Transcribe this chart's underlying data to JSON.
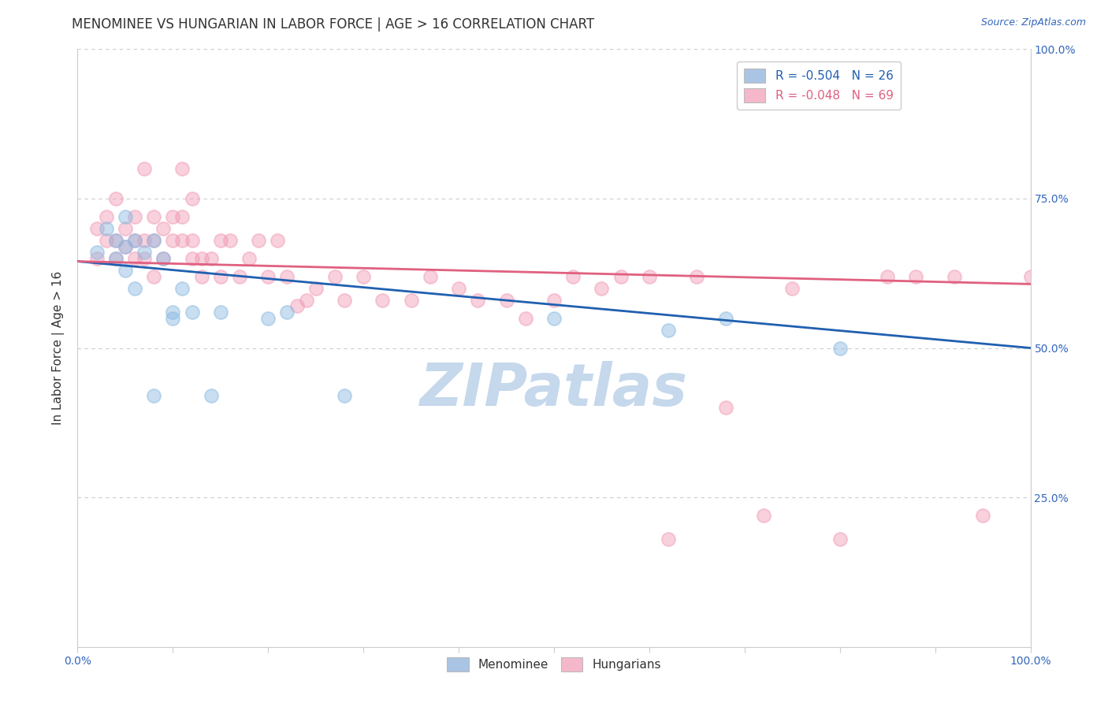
{
  "title": "MENOMINEE VS HUNGARIAN IN LABOR FORCE | AGE > 16 CORRELATION CHART",
  "source_text": "Source: ZipAtlas.com",
  "ylabel": "In Labor Force | Age > 16",
  "xlim": [
    0.0,
    1.0
  ],
  "ylim": [
    0.0,
    1.0
  ],
  "ytick_pos": [
    0.0,
    0.25,
    0.5,
    0.75,
    1.0
  ],
  "xtick_pos": [
    0.0,
    0.1,
    0.2,
    0.3,
    0.4,
    0.5,
    0.6,
    0.7,
    0.8,
    0.9,
    1.0
  ],
  "right_ytick_labels": [
    "",
    "25.0%",
    "50.0%",
    "75.0%",
    "100.0%"
  ],
  "xtick_labels": [
    "0.0%",
    "",
    "",
    "",
    "",
    "",
    "",
    "",
    "",
    "",
    "100.0%"
  ],
  "legend_blue_label": "R = -0.504   N = 26",
  "legend_pink_label": "R = -0.048   N = 69",
  "legend_blue_color": "#aac4e4",
  "legend_pink_color": "#f5b8ca",
  "scatter_blue_color": "#88b8e0",
  "scatter_pink_color": "#f09ab5",
  "line_blue_color": "#2060b0",
  "line_pink_color": "#e06080",
  "watermark_color": "#c5d8ec",
  "background_color": "#ffffff",
  "grid_color": "#cccccc",
  "title_color": "#333333",
  "tick_color": "#3366bb",
  "axis_label_color": "#333333",
  "menominee_x": [
    0.02,
    0.03,
    0.04,
    0.04,
    0.05,
    0.05,
    0.05,
    0.06,
    0.06,
    0.07,
    0.08,
    0.08,
    0.09,
    0.1,
    0.1,
    0.11,
    0.12,
    0.14,
    0.15,
    0.2,
    0.22,
    0.28,
    0.5,
    0.62,
    0.68,
    0.8
  ],
  "menominee_y": [
    0.66,
    0.7,
    0.68,
    0.65,
    0.72,
    0.67,
    0.63,
    0.68,
    0.6,
    0.66,
    0.68,
    0.42,
    0.65,
    0.56,
    0.55,
    0.6,
    0.56,
    0.42,
    0.56,
    0.55,
    0.56,
    0.42,
    0.55,
    0.53,
    0.55,
    0.5
  ],
  "hungarian_x": [
    0.02,
    0.02,
    0.03,
    0.03,
    0.04,
    0.04,
    0.04,
    0.05,
    0.05,
    0.06,
    0.06,
    0.06,
    0.07,
    0.07,
    0.07,
    0.08,
    0.08,
    0.08,
    0.09,
    0.09,
    0.1,
    0.1,
    0.11,
    0.11,
    0.11,
    0.12,
    0.12,
    0.12,
    0.13,
    0.13,
    0.14,
    0.15,
    0.15,
    0.16,
    0.17,
    0.18,
    0.19,
    0.2,
    0.21,
    0.22,
    0.23,
    0.24,
    0.25,
    0.27,
    0.28,
    0.3,
    0.32,
    0.35,
    0.37,
    0.4,
    0.42,
    0.45,
    0.47,
    0.5,
    0.52,
    0.55,
    0.57,
    0.6,
    0.62,
    0.65,
    0.68,
    0.72,
    0.75,
    0.8,
    0.85,
    0.88,
    0.92,
    0.95,
    1.0
  ],
  "hungarian_y": [
    0.65,
    0.7,
    0.68,
    0.72,
    0.68,
    0.75,
    0.65,
    0.7,
    0.67,
    0.68,
    0.72,
    0.65,
    0.8,
    0.68,
    0.65,
    0.72,
    0.68,
    0.62,
    0.7,
    0.65,
    0.72,
    0.68,
    0.8,
    0.68,
    0.72,
    0.75,
    0.68,
    0.65,
    0.65,
    0.62,
    0.65,
    0.68,
    0.62,
    0.68,
    0.62,
    0.65,
    0.68,
    0.62,
    0.68,
    0.62,
    0.57,
    0.58,
    0.6,
    0.62,
    0.58,
    0.62,
    0.58,
    0.58,
    0.62,
    0.6,
    0.58,
    0.58,
    0.55,
    0.58,
    0.62,
    0.6,
    0.62,
    0.62,
    0.18,
    0.62,
    0.4,
    0.22,
    0.6,
    0.18,
    0.62,
    0.62,
    0.62,
    0.22,
    0.62
  ],
  "title_fontsize": 12,
  "axis_label_fontsize": 11,
  "tick_fontsize": 10,
  "legend_fontsize": 11,
  "source_fontsize": 9,
  "scatter_size": 150,
  "scatter_alpha": 0.45,
  "line_width": 2.0
}
